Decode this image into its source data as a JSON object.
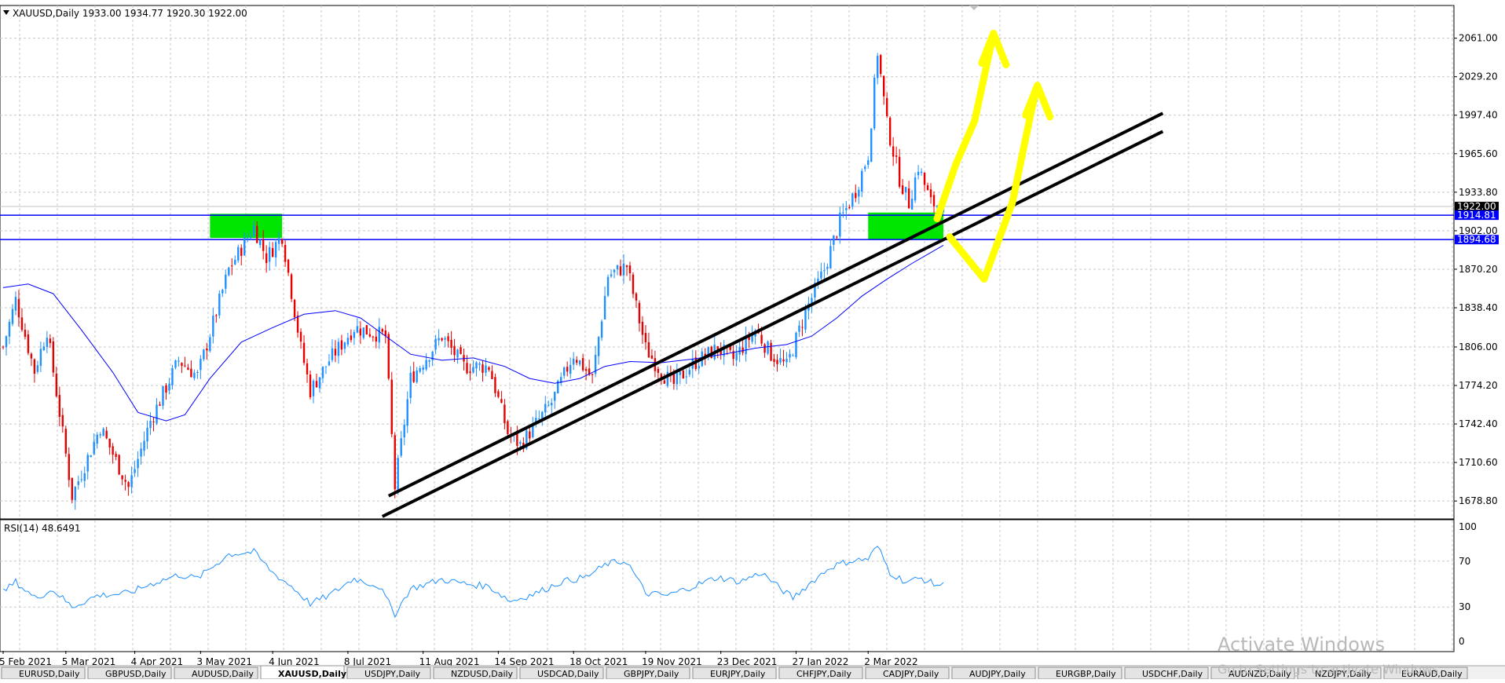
{
  "window": {
    "symbol_header": "XAUUSD,Daily  1933.00 1934.77 1920.30 1922.00"
  },
  "chart_data": {
    "type": "candlestick",
    "symbol": "XAUUSD",
    "timeframe": "Daily",
    "ohlc_last": {
      "open": 1933.0,
      "high": 1934.77,
      "low": 1920.3,
      "close": 1922.0
    },
    "price_axis": {
      "ticks": [
        2061.0,
        2029.2,
        1997.4,
        1965.6,
        1933.8,
        1902.0,
        1870.2,
        1838.4,
        1806.0,
        1774.2,
        1742.4,
        1710.6,
        1678.8
      ],
      "ylim": [
        1664.0,
        2088.0
      ]
    },
    "time_axis": {
      "labels": [
        "5 Feb 2021",
        "5 Mar 2021",
        "4 Apr 2021",
        "3 May 2021",
        "4 Jun 2021",
        "8 Jul 2021",
        "11 Aug 2021",
        "14 Sep 2021",
        "18 Oct 2021",
        "19 Nov 2021",
        "23 Dec 2021",
        "27 Jan 2022",
        "2 Mar 2022"
      ],
      "label_bar_index": [
        0,
        20,
        42,
        63,
        86,
        110,
        134,
        158,
        182,
        205,
        229,
        253,
        276
      ],
      "bar_count": 305
    },
    "price_labels": [
      {
        "value": 1922.0,
        "text": "1922.00",
        "bg": "#000000",
        "fg": "#ffffff"
      },
      {
        "value": 1914.81,
        "text": "1914.81",
        "bg": "#0000ff",
        "fg": "#ffffff"
      },
      {
        "value": 1894.68,
        "text": "1894.68",
        "bg": "#0000ff",
        "fg": "#ffffff"
      }
    ],
    "horizontal_lines": [
      {
        "value": 1914.81,
        "color": "#0000ff"
      },
      {
        "value": 1894.68,
        "color": "#0000ff"
      }
    ],
    "zones": [
      {
        "bar_start": 66,
        "bar_end": 89,
        "low": 1896.0,
        "high": 1916.0,
        "color": "#00e600"
      },
      {
        "bar_start": 276,
        "bar_end": 300,
        "low": 1895.0,
        "high": 1917.0,
        "color": "#00e600"
      }
    ],
    "trendlines": [
      {
        "bar_start": 123,
        "price_start": 1683.0,
        "bar_end": 370,
        "price_end": 1999.0,
        "color": "#000000"
      },
      {
        "bar_start": 121,
        "price_start": 1666.0,
        "bar_end": 370,
        "price_end": 1984.0,
        "color": "#000000"
      }
    ],
    "anchor_points": [
      {
        "bar": 0,
        "price": 1806
      },
      {
        "bar": 4,
        "price": 1845
      },
      {
        "bar": 10,
        "price": 1786
      },
      {
        "bar": 14,
        "price": 1820
      },
      {
        "bar": 22,
        "price": 1683
      },
      {
        "bar": 31,
        "price": 1740
      },
      {
        "bar": 40,
        "price": 1690
      },
      {
        "bar": 47,
        "price": 1745
      },
      {
        "bar": 56,
        "price": 1795
      },
      {
        "bar": 62,
        "price": 1782
      },
      {
        "bar": 72,
        "price": 1870
      },
      {
        "bar": 80,
        "price": 1905
      },
      {
        "bar": 84,
        "price": 1880
      },
      {
        "bar": 89,
        "price": 1898
      },
      {
        "bar": 95,
        "price": 1805
      },
      {
        "bar": 98,
        "price": 1770
      },
      {
        "bar": 104,
        "price": 1795
      },
      {
        "bar": 112,
        "price": 1822
      },
      {
        "bar": 122,
        "price": 1815
      },
      {
        "bar": 125,
        "price": 1690
      },
      {
        "bar": 130,
        "price": 1780
      },
      {
        "bar": 140,
        "price": 1815
      },
      {
        "bar": 147,
        "price": 1790
      },
      {
        "bar": 155,
        "price": 1790
      },
      {
        "bar": 161,
        "price": 1735
      },
      {
        "bar": 165,
        "price": 1725
      },
      {
        "bar": 175,
        "price": 1760
      },
      {
        "bar": 182,
        "price": 1800
      },
      {
        "bar": 188,
        "price": 1780
      },
      {
        "bar": 193,
        "price": 1865
      },
      {
        "bar": 199,
        "price": 1873
      },
      {
        "bar": 205,
        "price": 1805
      },
      {
        "bar": 210,
        "price": 1785
      },
      {
        "bar": 214,
        "price": 1775
      },
      {
        "bar": 220,
        "price": 1792
      },
      {
        "bar": 228,
        "price": 1805
      },
      {
        "bar": 233,
        "price": 1796
      },
      {
        "bar": 240,
        "price": 1820
      },
      {
        "bar": 245,
        "price": 1800
      },
      {
        "bar": 250,
        "price": 1790
      },
      {
        "bar": 256,
        "price": 1835
      },
      {
        "bar": 262,
        "price": 1870
      },
      {
        "bar": 267,
        "price": 1910
      },
      {
        "bar": 272,
        "price": 1935
      },
      {
        "bar": 276,
        "price": 1965
      },
      {
        "bar": 279,
        "price": 2050
      },
      {
        "bar": 282,
        "price": 1990
      },
      {
        "bar": 286,
        "price": 1945
      },
      {
        "bar": 289,
        "price": 1925
      },
      {
        "bar": 292,
        "price": 1955
      },
      {
        "bar": 296,
        "price": 1925
      },
      {
        "bar": 300,
        "price": 1922
      }
    ],
    "moving_average": {
      "color": "#0000ff",
      "points": [
        {
          "bar": 0,
          "price": 1855
        },
        {
          "bar": 8,
          "price": 1858
        },
        {
          "bar": 16,
          "price": 1850
        },
        {
          "bar": 25,
          "price": 1820
        },
        {
          "bar": 35,
          "price": 1785
        },
        {
          "bar": 43,
          "price": 1752
        },
        {
          "bar": 52,
          "price": 1745
        },
        {
          "bar": 58,
          "price": 1750
        },
        {
          "bar": 66,
          "price": 1780
        },
        {
          "bar": 76,
          "price": 1810
        },
        {
          "bar": 86,
          "price": 1822
        },
        {
          "bar": 96,
          "price": 1833
        },
        {
          "bar": 106,
          "price": 1836
        },
        {
          "bar": 114,
          "price": 1830
        },
        {
          "bar": 122,
          "price": 1815
        },
        {
          "bar": 130,
          "price": 1800
        },
        {
          "bar": 140,
          "price": 1795
        },
        {
          "bar": 150,
          "price": 1797
        },
        {
          "bar": 160,
          "price": 1790
        },
        {
          "bar": 168,
          "price": 1780
        },
        {
          "bar": 176,
          "price": 1776
        },
        {
          "bar": 184,
          "price": 1780
        },
        {
          "bar": 192,
          "price": 1790
        },
        {
          "bar": 200,
          "price": 1794
        },
        {
          "bar": 210,
          "price": 1793
        },
        {
          "bar": 220,
          "price": 1796
        },
        {
          "bar": 230,
          "price": 1800
        },
        {
          "bar": 240,
          "price": 1805
        },
        {
          "bar": 250,
          "price": 1808
        },
        {
          "bar": 258,
          "price": 1815
        },
        {
          "bar": 266,
          "price": 1830
        },
        {
          "bar": 274,
          "price": 1848
        },
        {
          "bar": 282,
          "price": 1862
        },
        {
          "bar": 290,
          "price": 1875
        },
        {
          "bar": 300,
          "price": 1890
        }
      ]
    },
    "rsi": {
      "label": "RSI(14) 48.6491",
      "period": 14,
      "last": 48.6491,
      "ticks": [
        100,
        70,
        30,
        0
      ],
      "ylim": [
        0,
        100
      ],
      "color": "#1e90ff",
      "anchor_points": [
        {
          "bar": 0,
          "value": 43
        },
        {
          "bar": 4,
          "value": 52
        },
        {
          "bar": 10,
          "value": 38
        },
        {
          "bar": 16,
          "value": 45
        },
        {
          "bar": 22,
          "value": 30
        },
        {
          "bar": 30,
          "value": 40
        },
        {
          "bar": 40,
          "value": 42
        },
        {
          "bar": 47,
          "value": 50
        },
        {
          "bar": 56,
          "value": 58
        },
        {
          "bar": 62,
          "value": 55
        },
        {
          "bar": 72,
          "value": 76
        },
        {
          "bar": 80,
          "value": 78
        },
        {
          "bar": 86,
          "value": 60
        },
        {
          "bar": 92,
          "value": 48
        },
        {
          "bar": 98,
          "value": 33
        },
        {
          "bar": 104,
          "value": 40
        },
        {
          "bar": 112,
          "value": 55
        },
        {
          "bar": 120,
          "value": 48
        },
        {
          "bar": 125,
          "value": 24
        },
        {
          "bar": 130,
          "value": 46
        },
        {
          "bar": 140,
          "value": 54
        },
        {
          "bar": 148,
          "value": 50
        },
        {
          "bar": 155,
          "value": 48
        },
        {
          "bar": 162,
          "value": 35
        },
        {
          "bar": 170,
          "value": 42
        },
        {
          "bar": 178,
          "value": 52
        },
        {
          "bar": 186,
          "value": 56
        },
        {
          "bar": 193,
          "value": 68
        },
        {
          "bar": 199,
          "value": 70
        },
        {
          "bar": 205,
          "value": 42
        },
        {
          "bar": 212,
          "value": 40
        },
        {
          "bar": 220,
          "value": 48
        },
        {
          "bar": 228,
          "value": 56
        },
        {
          "bar": 235,
          "value": 52
        },
        {
          "bar": 242,
          "value": 60
        },
        {
          "bar": 248,
          "value": 46
        },
        {
          "bar": 252,
          "value": 38
        },
        {
          "bar": 258,
          "value": 52
        },
        {
          "bar": 264,
          "value": 65
        },
        {
          "bar": 270,
          "value": 70
        },
        {
          "bar": 276,
          "value": 72
        },
        {
          "bar": 279,
          "value": 83
        },
        {
          "bar": 283,
          "value": 60
        },
        {
          "bar": 288,
          "value": 52
        },
        {
          "bar": 293,
          "value": 55
        },
        {
          "bar": 297,
          "value": 50
        },
        {
          "bar": 300,
          "value": 49
        }
      ]
    },
    "annotations": [
      {
        "kind": "arrow",
        "color": "#ffff00",
        "points": [
          {
            "bar": 298,
            "price": 1912
          },
          {
            "bar": 304,
            "price": 1957
          },
          {
            "bar": 310,
            "price": 1993
          },
          {
            "bar": 316,
            "price": 2065
          }
        ]
      },
      {
        "kind": "arrow",
        "color": "#ffff00",
        "points": [
          {
            "bar": 302,
            "price": 1897
          },
          {
            "bar": 313,
            "price": 1862
          },
          {
            "bar": 322,
            "price": 1925
          },
          {
            "bar": 328,
            "price": 2000
          },
          {
            "bar": 330,
            "price": 2022
          }
        ]
      }
    ]
  },
  "symbol_tabs": [
    "EURUSD,Daily",
    "GBPUSD,Daily",
    "AUDUSD,Daily",
    "XAUUSD,Daily",
    "USDJPY,Daily",
    "NZDUSD,Daily",
    "USDCAD,Daily",
    "GBPJPY,Daily",
    "EURJPY,Daily",
    "CHFJPY,Daily",
    "CADJPY,Daily",
    "AUDJPY,Daily",
    "EURGBP,Daily",
    "USDCHF,Daily",
    "AUDNZD,Daily",
    "NZDJPY,Daily",
    "EURAUD,Daily"
  ],
  "active_tab_index": 3,
  "os_overlay": {
    "title": "Activate Windows",
    "subtitle": "Go to Settings to activate Windows."
  }
}
